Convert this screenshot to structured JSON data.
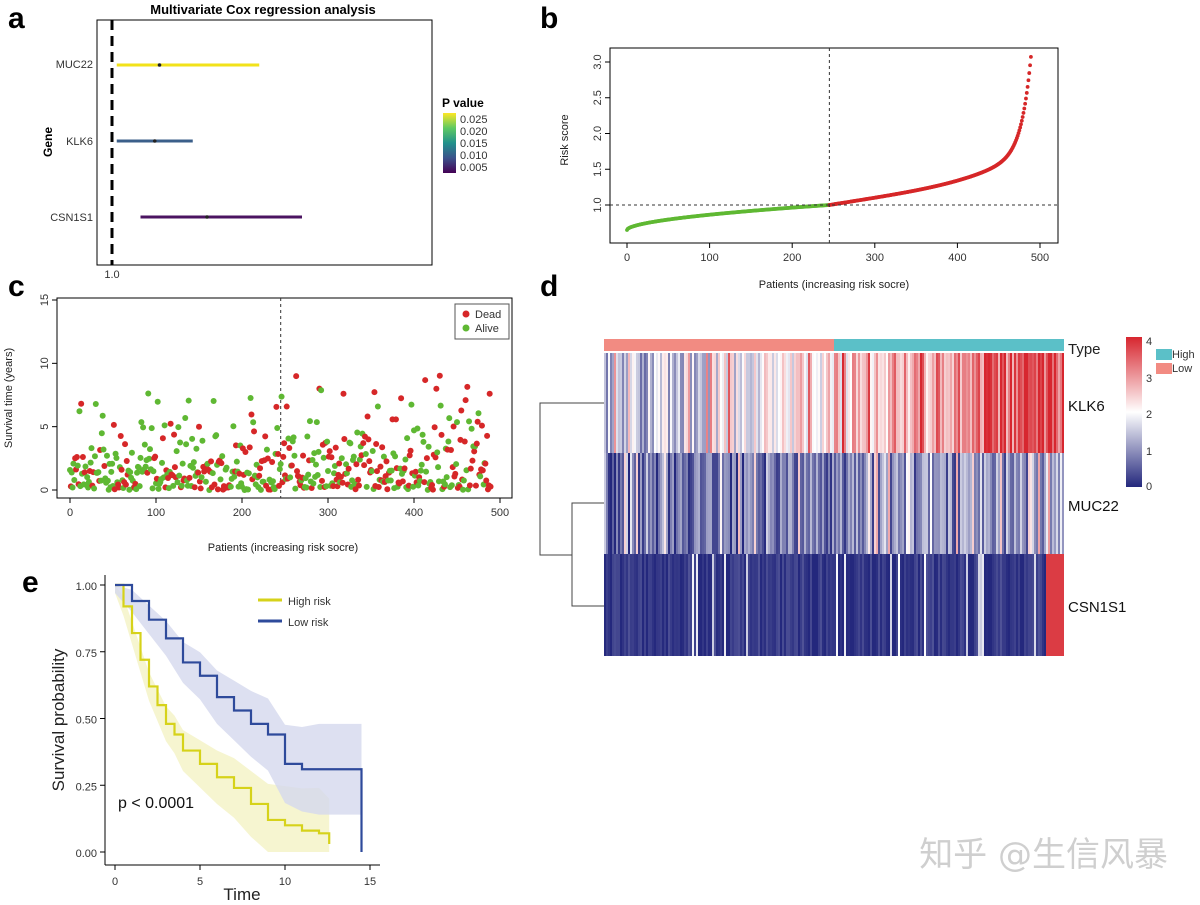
{
  "watermark": "知乎 @生信风暴",
  "chart_data": [
    {
      "panel": "a",
      "type": "forest",
      "title": "Multivariate Cox regression analysis",
      "ylabel": "Gene",
      "xtick": "1.0",
      "legend_title": "P value",
      "legend_ticks": [
        "0.025",
        "0.020",
        "0.015",
        "0.010",
        "0.005"
      ],
      "colorscale": [
        "#fde725",
        "#5ec962",
        "#21918c",
        "#3b528b",
        "#440154"
      ],
      "rows": [
        {
          "gene": "MUC22",
          "p": 0.027,
          "low": 1.05,
          "point": 1.5,
          "high": 2.55,
          "color": "#f2e21a"
        },
        {
          "gene": "KLK6",
          "p": 0.012,
          "low": 1.05,
          "point": 1.45,
          "high": 1.85,
          "color": "#3b5f8a"
        },
        {
          "gene": "CSN1S1",
          "p": 0.004,
          "low": 1.3,
          "point": 2.0,
          "high": 3.0,
          "color": "#4b1461"
        }
      ]
    },
    {
      "panel": "b",
      "type": "scatter",
      "xlabel": "Patients (increasing risk socre)",
      "ylabel": "Risk score",
      "xlim": [
        0,
        500
      ],
      "ylim": [
        0.6,
        3.2
      ],
      "xticks": [
        "0",
        "100",
        "200",
        "300",
        "400",
        "500"
      ],
      "yticks": [
        "1.0",
        "1.5",
        "2.0",
        "2.5",
        "3.0"
      ],
      "cutoff_x": 245,
      "cutoff_y": 1.0,
      "n": 490,
      "colors": {
        "low": "#5fb833",
        "high": "#d62728"
      }
    },
    {
      "panel": "c",
      "type": "scatter",
      "xlabel": "Patients (increasing risk socre)",
      "ylabel": "Survival time (years)",
      "xlim": [
        0,
        500
      ],
      "ylim": [
        0,
        15
      ],
      "xticks": [
        "0",
        "100",
        "200",
        "300",
        "400",
        "500"
      ],
      "yticks": [
        "0",
        "5",
        "10",
        "15"
      ],
      "cutoff_x": 245,
      "legend": [
        "Dead",
        "Alive"
      ],
      "colors": {
        "Dead": "#d62728",
        "Alive": "#5fb833"
      }
    },
    {
      "panel": "d",
      "type": "heatmap",
      "annotation_label": "Type",
      "annotation_legend": [
        "High",
        "Low"
      ],
      "annotation_colors": {
        "High": "#5bc0c8",
        "Low": "#f28b82"
      },
      "rows": [
        "KLK6",
        "MUC22",
        "CSN1S1"
      ],
      "colorbar_ticks": [
        "4",
        "3",
        "2",
        "1",
        "0"
      ],
      "colorscale": [
        "#24287d",
        "#ffffff",
        "#d7262f"
      ]
    },
    {
      "panel": "e",
      "type": "line",
      "xlabel": "Time",
      "ylabel": "Survival probability",
      "xlim": [
        0,
        15
      ],
      "ylim": [
        0,
        1
      ],
      "xticks": [
        "0",
        "5",
        "10",
        "15"
      ],
      "yticks": [
        "0.00",
        "0.25",
        "0.50",
        "0.75",
        "1.00"
      ],
      "pvalue": "p < 0.0001",
      "series": [
        {
          "name": "High risk",
          "color": "#d6d21a",
          "x": [
            0,
            0.5,
            1,
            1.5,
            2,
            2.5,
            3,
            3.5,
            4,
            5,
            6,
            7,
            8,
            9,
            10,
            11,
            12,
            12.6
          ],
          "y": [
            1.0,
            0.92,
            0.82,
            0.72,
            0.62,
            0.55,
            0.48,
            0.44,
            0.38,
            0.33,
            0.28,
            0.24,
            0.18,
            0.12,
            0.1,
            0.08,
            0.07,
            0.03
          ]
        },
        {
          "name": "Low risk",
          "color": "#2e4a9b",
          "x": [
            0,
            1,
            2,
            3,
            4,
            5,
            6,
            7,
            8,
            9,
            10,
            11,
            12,
            13,
            14,
            14.5,
            14.5
          ],
          "y": [
            1.0,
            0.94,
            0.87,
            0.8,
            0.71,
            0.66,
            0.58,
            0.53,
            0.48,
            0.44,
            0.33,
            0.31,
            0.31,
            0.31,
            0.31,
            0.31,
            0.0
          ]
        }
      ]
    }
  ]
}
